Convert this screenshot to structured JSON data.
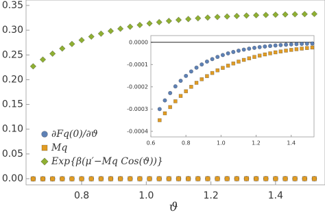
{
  "chart_data": [
    {
      "type": "scatter",
      "x_label": "ϑ",
      "x": [
        0.65,
        0.68,
        0.71,
        0.74,
        0.77,
        0.8,
        0.83,
        0.86,
        0.89,
        0.92,
        0.95,
        0.98,
        1.01,
        1.04,
        1.07,
        1.1,
        1.13,
        1.16,
        1.19,
        1.22,
        1.25,
        1.28,
        1.31,
        1.34,
        1.37,
        1.4,
        1.43,
        1.46,
        1.49,
        1.52
      ],
      "series": [
        {
          "name": "∂Fq(0)/∂ϑ",
          "color": "#5e81b5",
          "marker": "circle",
          "values": [
            -0.0003,
            -0.000261,
            -0.000228,
            -0.000198,
            -0.000173,
            -0.000151,
            -0.000131,
            -0.000114,
            -9.96e-05,
            -8.67e-05,
            -7.56e-05,
            -6.57e-05,
            -5.73e-05,
            -4.98e-05,
            -4.35e-05,
            -3.78e-05,
            -3.3e-05,
            -2.87e-05,
            -2.5e-05,
            -2.18e-05,
            -1.9e-05,
            -1.65e-05,
            -1.44e-05,
            -1.25e-05,
            -1.09e-05,
            -9.5e-06,
            -8.3e-06,
            -7.2e-06,
            -6.3e-06,
            -5.5e-06
          ]
        },
        {
          "name": "Mq",
          "color": "#e19c24",
          "marker": "square",
          "values": [
            -0.00035,
            -0.000319,
            -0.000291,
            -0.000265,
            -0.000241,
            -0.00022,
            -0.0002,
            -0.000182,
            -0.000166,
            -0.000152,
            -0.000138,
            -0.000126,
            -0.000115,
            -0.000105,
            -9.52e-05,
            -8.68e-05,
            -7.91e-05,
            -7.21e-05,
            -6.58e-05,
            -5.99e-05,
            -5.46e-05,
            -4.97e-05,
            -4.52e-05,
            -4.13e-05,
            -3.75e-05,
            -3.42e-05,
            -3.12e-05,
            -2.84e-05,
            -2.59e-05,
            -2.36e-05
          ]
        },
        {
          "name": "Exp{β(μ′−Mq Cos(ϑ))}",
          "color": "#8fb032",
          "marker": "diamond",
          "values": [
            0.227,
            0.2406,
            0.2526,
            0.263,
            0.2721,
            0.28,
            0.287,
            0.293,
            0.2983,
            0.303,
            0.307,
            0.3105,
            0.3136,
            0.3163,
            0.3187,
            0.3207,
            0.3225,
            0.3241,
            0.3255,
            0.3267,
            0.3277,
            0.3287,
            0.3295,
            0.3302,
            0.3308,
            0.3313,
            0.3318,
            0.3322,
            0.3325,
            0.3329
          ]
        }
      ],
      "xlim": [
        0.628,
        1.553
      ],
      "ylim": [
        -0.0124,
        0.361
      ],
      "xticks": [
        0.8,
        {
          "value": 1,
          "label": "1.0"
        },
        1.2,
        1.4
      ],
      "yticks": [
        {
          "value": 0,
          "label": "0.00"
        },
        0.05,
        {
          "value": 0.1,
          "label": "0.10"
        },
        0.15,
        {
          "value": 0.2,
          "label": "0.20"
        },
        0.25,
        {
          "value": 0.3,
          "label": "0.30"
        },
        0.35
      ],
      "legend": "lower left"
    },
    {
      "type": "scatter",
      "x": [
        0.65,
        0.68,
        0.71,
        0.74,
        0.77,
        0.8,
        0.83,
        0.86,
        0.89,
        0.92,
        0.95,
        0.98,
        1.01,
        1.04,
        1.07,
        1.1,
        1.13,
        1.16,
        1.19,
        1.22,
        1.25,
        1.28,
        1.31,
        1.34,
        1.37,
        1.4,
        1.43,
        1.46,
        1.49,
        1.52
      ],
      "series": [
        {
          "color": "#5e81b5",
          "marker": "circle",
          "values": [
            -0.0003,
            -0.000261,
            -0.000228,
            -0.000198,
            -0.000173,
            -0.000151,
            -0.000131,
            -0.000114,
            -9.96e-05,
            -8.67e-05,
            -7.56e-05,
            -6.57e-05,
            -5.73e-05,
            -4.98e-05,
            -4.35e-05,
            -3.78e-05,
            -3.3e-05,
            -2.87e-05,
            -2.5e-05,
            -2.18e-05,
            -1.9e-05,
            -1.65e-05,
            -1.44e-05,
            -1.25e-05,
            -1.09e-05,
            -9.5e-06,
            -8.3e-06,
            -7.2e-06,
            -6.3e-06,
            -5.5e-06
          ]
        },
        {
          "color": "#e19c24",
          "marker": "square",
          "values": [
            -0.00035,
            -0.000319,
            -0.000291,
            -0.000265,
            -0.000241,
            -0.00022,
            -0.0002,
            -0.000182,
            -0.000166,
            -0.000152,
            -0.000138,
            -0.000126,
            -0.000115,
            -0.000105,
            -9.52e-05,
            -8.68e-05,
            -7.91e-05,
            -7.21e-05,
            -6.58e-05,
            -5.99e-05,
            -5.46e-05,
            -4.97e-05,
            -4.52e-05,
            -4.13e-05,
            -3.75e-05,
            -3.42e-05,
            -3.12e-05,
            -2.84e-05,
            -2.59e-05,
            -2.36e-05
          ]
        }
      ],
      "xlim": [
        0.6,
        1.53
      ],
      "ylim": [
        -0.000425,
        3e-05
      ],
      "xticks": [
        0.6,
        0.8,
        {
          "value": 1,
          "label": "1.0"
        },
        1.2,
        1.4
      ],
      "yticks": [
        {
          "value": 0,
          "label": "0.0000"
        },
        -0.0001,
        -0.0002,
        -0.0003,
        -0.0004
      ]
    }
  ]
}
